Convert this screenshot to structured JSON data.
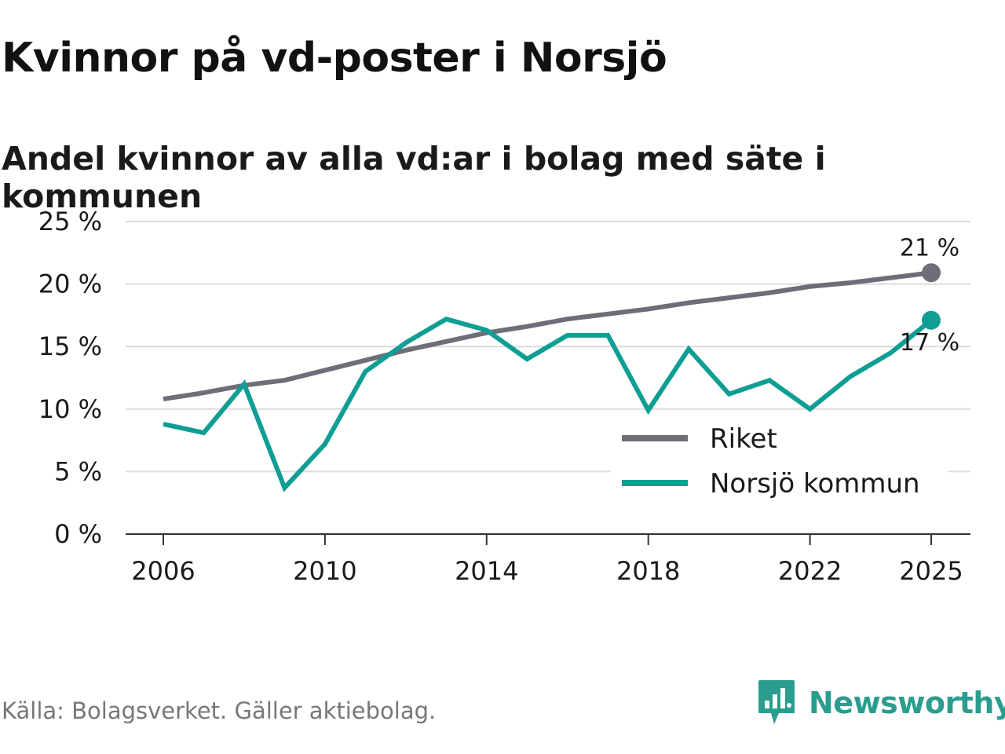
{
  "title": "Kvinnor på vd-poster i Norsjö",
  "subtitle": "Andel kvinnor av alla vd:ar i bolag med säte i kommunen",
  "source": "Källa: Bolagsverket. Gäller aktiebolag.",
  "brand": "Newsworthy",
  "chart_data": {
    "type": "line",
    "title": "Kvinnor på vd-poster i Norsjö",
    "subtitle": "Andel kvinnor av alla vd:ar i bolag med säte i kommunen",
    "xlabel": "",
    "ylabel": "",
    "x": [
      2006,
      2007,
      2008,
      2009,
      2010,
      2011,
      2012,
      2013,
      2014,
      2015,
      2016,
      2017,
      2018,
      2019,
      2020,
      2021,
      2022,
      2023,
      2024,
      2025
    ],
    "xticks": [
      2006,
      2010,
      2014,
      2018,
      2022,
      2025
    ],
    "yticks": [
      0,
      5,
      10,
      15,
      20,
      25
    ],
    "ytick_labels": [
      "0 %",
      "5 %",
      "10 %",
      "15 %",
      "20 %",
      "25 %"
    ],
    "ylim": [
      0,
      25
    ],
    "grid": true,
    "legend_position": "bottom-right",
    "series": [
      {
        "name": "Riket",
        "color": "#6e6e78",
        "values": [
          10.8,
          11.3,
          11.9,
          12.3,
          13.1,
          13.9,
          14.7,
          15.4,
          16.1,
          16.6,
          17.2,
          17.6,
          18.0,
          18.5,
          18.9,
          19.3,
          19.8,
          20.1,
          20.5,
          20.9
        ],
        "end_label": "21 %"
      },
      {
        "name": "Norsjö kommun",
        "color": "#0f9e94",
        "values": [
          8.8,
          8.1,
          12.0,
          3.7,
          7.2,
          13.0,
          15.3,
          17.2,
          16.3,
          14.0,
          15.9,
          15.9,
          9.9,
          14.8,
          11.2,
          12.3,
          10.0,
          12.6,
          14.5,
          17.1
        ],
        "end_label": "17 %"
      }
    ]
  }
}
